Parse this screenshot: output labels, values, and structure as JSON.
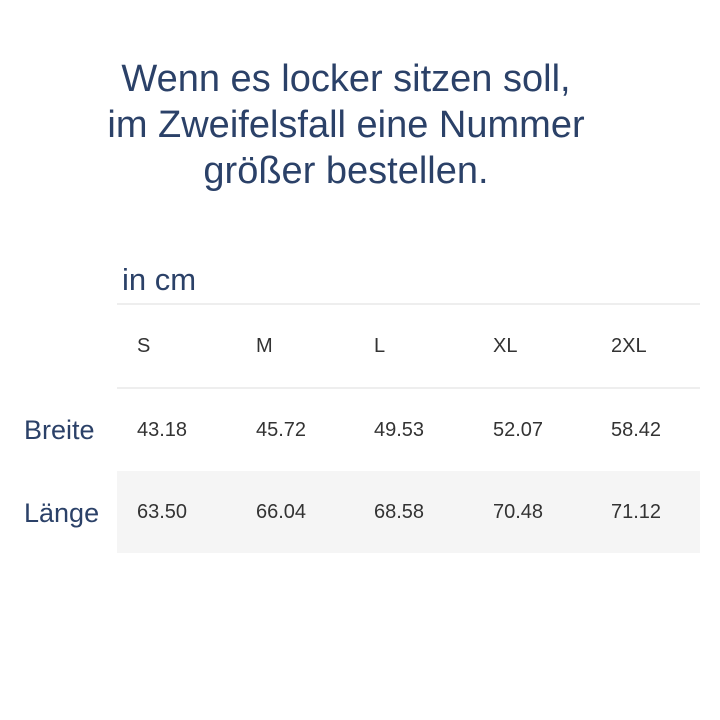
{
  "title_lines": [
    "Wenn es locker sitzen soll,",
    "im Zweifelsfall eine Nummer",
    "größer bestellen."
  ],
  "unit_label": "in cm",
  "table": {
    "columns": [
      "S",
      "M",
      "L",
      "XL",
      "2XL"
    ],
    "rows": [
      {
        "label": "Breite",
        "values": [
          "43.18",
          "45.72",
          "49.53",
          "52.07",
          "58.42"
        ]
      },
      {
        "label": "Länge",
        "values": [
          "63.50",
          "66.04",
          "68.58",
          "70.48",
          "71.12"
        ]
      }
    ]
  },
  "colors": {
    "heading": "#2b4168",
    "text": "#333333",
    "stripe": "#f5f5f5"
  }
}
